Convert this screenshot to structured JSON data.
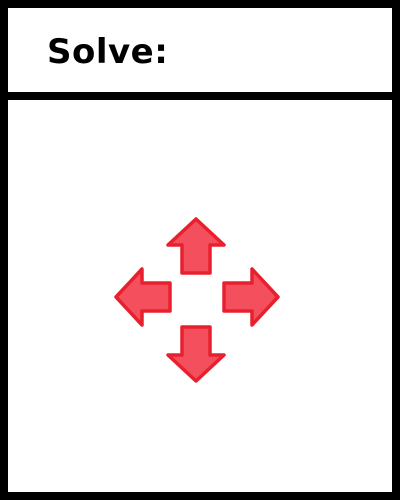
{
  "header": {
    "title": "Solve:"
  },
  "puzzle": {
    "arrows": [
      {
        "name": "up-arrow-icon",
        "direction": "up"
      },
      {
        "name": "left-arrow-icon",
        "direction": "left"
      },
      {
        "name": "right-arrow-icon",
        "direction": "right"
      },
      {
        "name": "down-arrow-icon",
        "direction": "down"
      }
    ],
    "colors": {
      "arrow_fill": "#f44f5c",
      "arrow_stroke": "#e8202e",
      "frame": "#000000",
      "background": "#ffffff"
    }
  }
}
